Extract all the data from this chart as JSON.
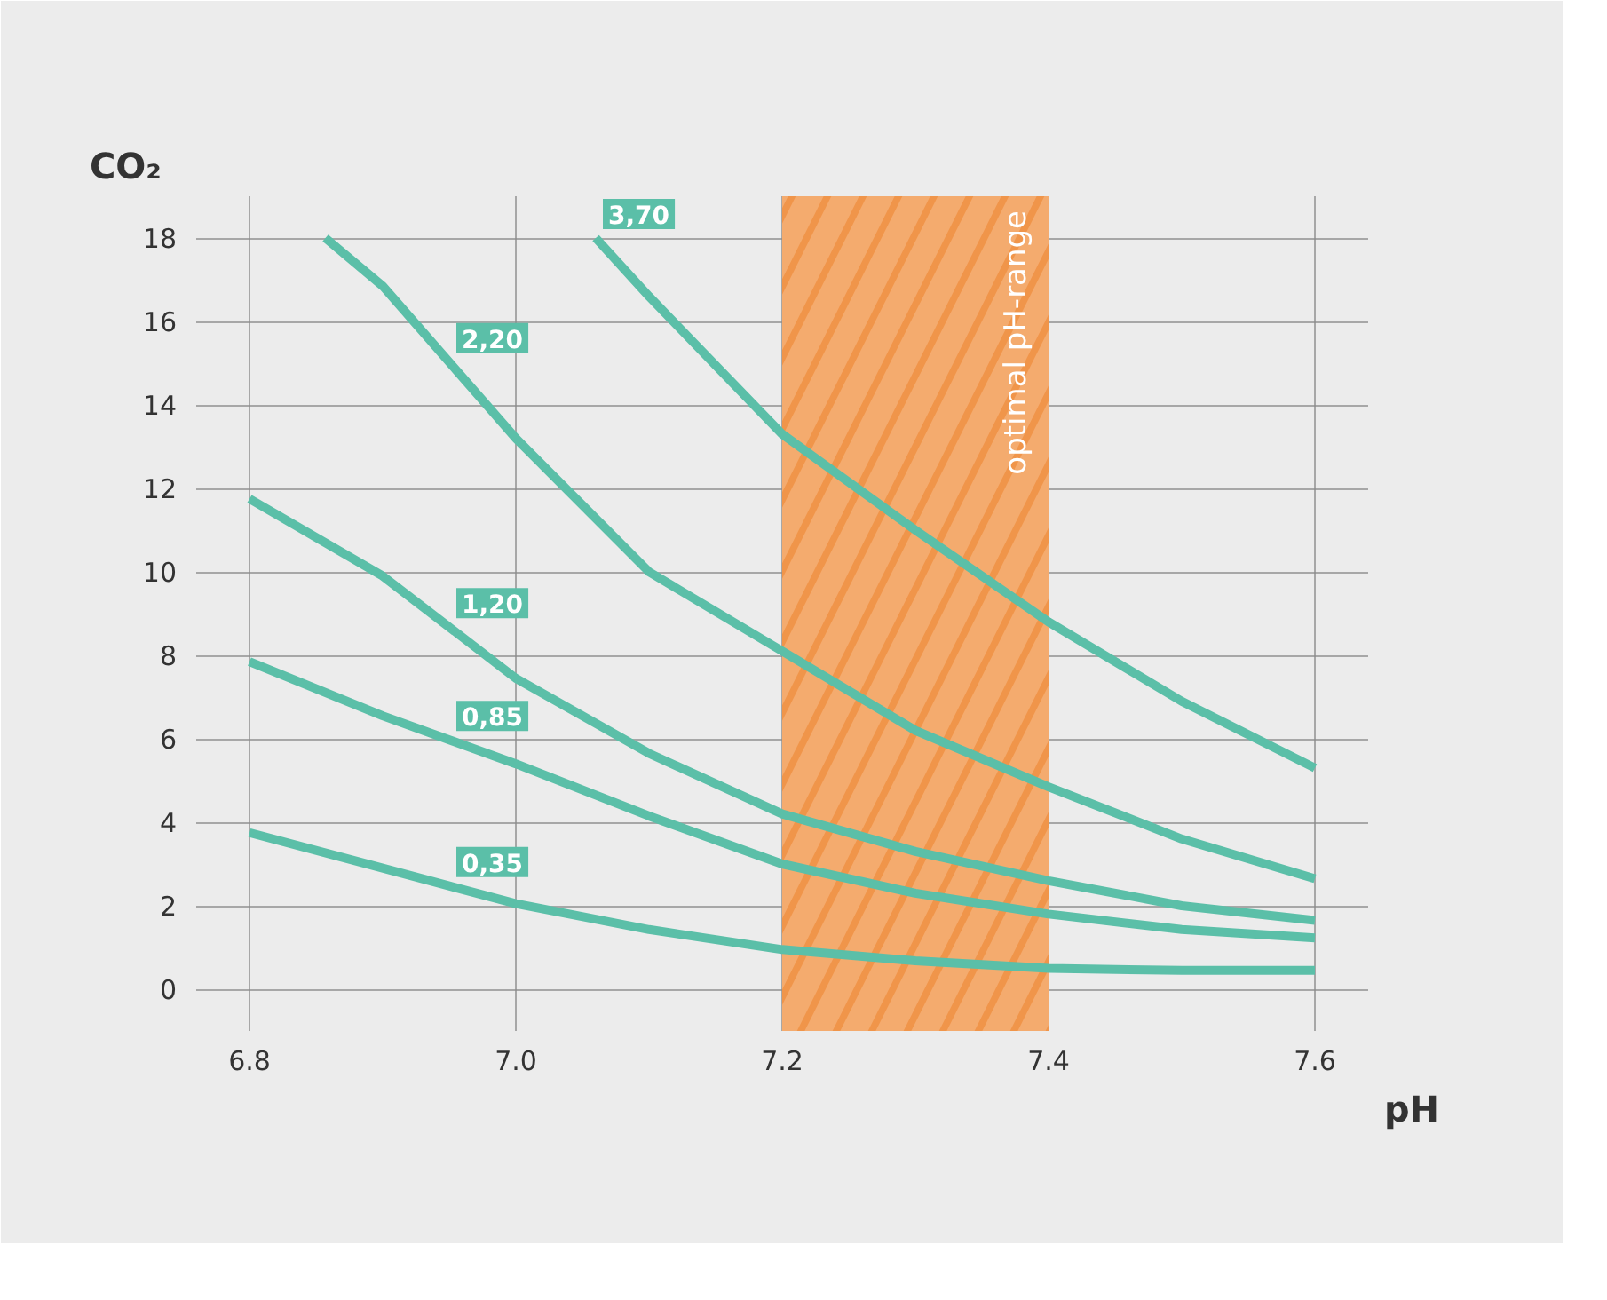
{
  "chart_data": {
    "type": "line",
    "title": "CO₂",
    "xlabel": "pH",
    "xlim": [
      6.76,
      7.64
    ],
    "ylim": [
      -1,
      19
    ],
    "xticks": [
      6.8,
      {
        "value": 7.0,
        "label": "7.0"
      },
      7.2,
      7.4,
      7.6
    ],
    "yticks": [
      0,
      2,
      4,
      6,
      8,
      10,
      12,
      14,
      16,
      18
    ],
    "grid": true,
    "marker": "none",
    "line_style": "solid",
    "bands": [
      {
        "axis": "x",
        "from": 7.2,
        "to": 7.4,
        "label": "optimal pH-range",
        "color": "#f0954a"
      }
    ],
    "series": [
      {
        "name": "3,70",
        "color": "#5bbfa8",
        "x": [
          7.06,
          7.1,
          7.2,
          7.3,
          7.4,
          7.5,
          7.6
        ],
        "values": [
          18,
          16.6,
          13.3,
          11.0,
          8.8,
          6.9,
          5.3
        ]
      },
      {
        "name": "2,20",
        "color": "#5bbfa8",
        "x": [
          6.857,
          6.9,
          7.0,
          7.1,
          7.2,
          7.3,
          7.4,
          7.5,
          7.6
        ],
        "values": [
          18,
          16.85,
          13.2,
          10.0,
          8.1,
          6.2,
          4.85,
          3.6,
          2.65
        ]
      },
      {
        "name": "1,20",
        "color": "#5bbfa8",
        "x": [
          6.8,
          6.9,
          7.0,
          7.1,
          7.2,
          7.3,
          7.4,
          7.5,
          7.6
        ],
        "values": [
          11.75,
          9.9,
          7.45,
          5.65,
          4.2,
          3.3,
          2.6,
          2.0,
          1.65
        ]
      },
      {
        "name": "0,85",
        "color": "#5bbfa8",
        "x": [
          6.8,
          6.9,
          7.0,
          7.1,
          7.2,
          7.3,
          7.4,
          7.5,
          7.6
        ],
        "values": [
          7.85,
          6.55,
          5.4,
          4.15,
          3.0,
          2.3,
          1.8,
          1.43,
          1.23
        ]
      },
      {
        "name": "0,35",
        "color": "#5bbfa8",
        "x": [
          6.8,
          6.9,
          7.0,
          7.1,
          7.2,
          7.3,
          7.4,
          7.5,
          7.6
        ],
        "values": [
          3.75,
          2.9,
          2.05,
          1.43,
          0.95,
          0.68,
          0.5,
          0.45,
          0.45
        ]
      }
    ]
  }
}
